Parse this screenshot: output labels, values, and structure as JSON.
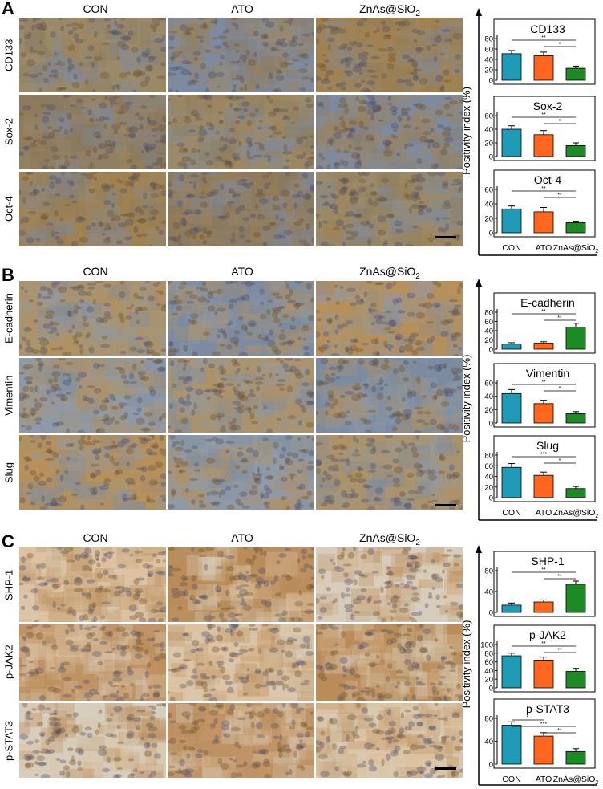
{
  "palette": {
    "con": "#1f9bb6",
    "ato": "#ff6620",
    "znas": "#1e8a24",
    "stain_A": [
      "#9a8a6a",
      "#7d8aa0",
      "#a08250",
      "#8a7a60"
    ],
    "stain_B": [
      "#8f9aa8",
      "#a89470",
      "#7c8ba0",
      "#b7905a"
    ],
    "stain_C": [
      "#d8cdbd",
      "#c09466",
      "#dcc2a0",
      "#b98c5a"
    ]
  },
  "columns": {
    "con": "CON",
    "ato": "ATO",
    "znas_main": "ZnAs@SiO",
    "znas_sub": "2"
  },
  "y_axis_label": "Positivity index (%)",
  "panels": [
    {
      "letter": "A",
      "rows": [
        "CD133",
        "Sox-2",
        "Oct-4"
      ]
    },
    {
      "letter": "B",
      "rows": [
        "E-cadherin",
        "Vimentin",
        "Slug"
      ]
    },
    {
      "letter": "C",
      "rows": [
        "SHP-1",
        "p-JAK2",
        "p-STAT3"
      ]
    }
  ],
  "chart_data": [
    {
      "type": "bar",
      "title": "CD133",
      "categories": [
        "CON",
        "ATO",
        "ZnAs@SiO2"
      ],
      "values": [
        51,
        47,
        23
      ],
      "errors": [
        6,
        7,
        4
      ],
      "ylim": [
        0,
        80
      ],
      "yticks": [
        0,
        20,
        40,
        60,
        80
      ],
      "sig": [
        "**",
        "*"
      ],
      "show_x": false
    },
    {
      "type": "bar",
      "title": "Sox-2",
      "categories": [
        "CON",
        "ATO",
        "ZnAs@SiO2"
      ],
      "values": [
        40,
        32,
        16
      ],
      "errors": [
        5,
        6,
        4
      ],
      "ylim": [
        0,
        60
      ],
      "yticks": [
        0,
        20,
        40,
        60
      ],
      "sig": [
        "**",
        "*"
      ],
      "show_x": false
    },
    {
      "type": "bar",
      "title": "Oct-4",
      "categories": [
        "CON",
        "ATO",
        "ZnAs@SiO2"
      ],
      "values": [
        33,
        29,
        14
      ],
      "errors": [
        4,
        6,
        2
      ],
      "ylim": [
        0,
        60
      ],
      "yticks": [
        0,
        20,
        40,
        60
      ],
      "sig": [
        "**",
        "**"
      ],
      "show_x": true
    },
    {
      "type": "bar",
      "title": "E-cadherin",
      "categories": [
        "CON",
        "ATO",
        "ZnAs@SiO2"
      ],
      "values": [
        11,
        13,
        48
      ],
      "errors": [
        3,
        3,
        8
      ],
      "ylim": [
        0,
        80
      ],
      "yticks": [
        0,
        20,
        40,
        60,
        80
      ],
      "sig": [
        "**",
        "**"
      ],
      "show_x": false
    },
    {
      "type": "bar",
      "title": "Vimentin",
      "categories": [
        "CON",
        "ATO",
        "ZnAs@SiO2"
      ],
      "values": [
        44,
        29,
        14
      ],
      "errors": [
        6,
        5,
        3
      ],
      "ylim": [
        0,
        60
      ],
      "yticks": [
        0,
        20,
        40,
        60
      ],
      "sig": [
        "**",
        "*"
      ],
      "show_x": false
    },
    {
      "type": "bar",
      "title": "Slug",
      "categories": [
        "CON",
        "ATO",
        "ZnAs@SiO2"
      ],
      "values": [
        57,
        42,
        17
      ],
      "errors": [
        7,
        6,
        4
      ],
      "ylim": [
        0,
        80
      ],
      "yticks": [
        0,
        20,
        40,
        60,
        80
      ],
      "sig": [
        "***",
        "*"
      ],
      "show_x": true
    },
    {
      "type": "bar",
      "title": "SHP-1",
      "categories": [
        "CON",
        "ATO",
        "ZnAs@SiO2"
      ],
      "values": [
        14,
        20,
        54
      ],
      "errors": [
        4,
        4,
        6
      ],
      "ylim": [
        0,
        80
      ],
      "yticks": [
        0,
        40,
        80
      ],
      "sig": [
        "**",
        "**"
      ],
      "show_x": false
    },
    {
      "type": "bar",
      "title": "p-JAK2",
      "categories": [
        "CON",
        "ATO",
        "ZnAs@SiO2"
      ],
      "values": [
        74,
        64,
        38
      ],
      "errors": [
        6,
        7,
        7
      ],
      "ylim": [
        0,
        100
      ],
      "yticks": [
        0,
        20,
        40,
        60,
        80,
        100
      ],
      "sig": [
        "**",
        "**"
      ],
      "show_x": false
    },
    {
      "type": "bar",
      "title": "p-STAT3",
      "categories": [
        "CON",
        "ATO",
        "ZnAs@SiO2"
      ],
      "values": [
        68,
        49,
        22
      ],
      "errors": [
        6,
        6,
        5
      ],
      "ylim": [
        0,
        80
      ],
      "yticks": [
        0,
        40,
        80
      ],
      "sig": [
        "*",
        "***",
        "**"
      ],
      "show_x": true
    }
  ]
}
